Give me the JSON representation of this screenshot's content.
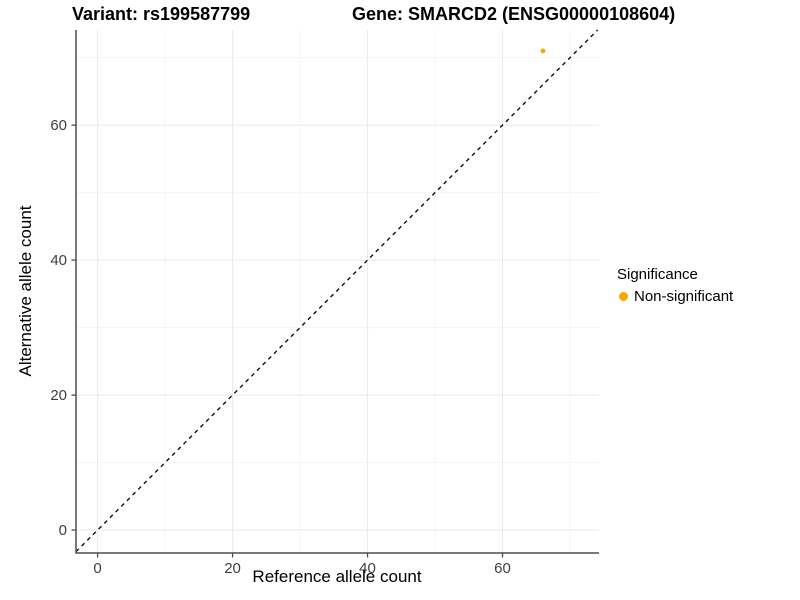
{
  "chart_data": {
    "type": "scatter",
    "title_variant": "Variant: rs199587799",
    "title_gene": "Gene: SMARCD2 (ENSG00000108604)",
    "xlabel": "Reference allele count",
    "ylabel": "Alternative allele count",
    "xlim": [
      -3.2,
      74.3
    ],
    "ylim": [
      -3.4,
      74.1
    ],
    "x_ticks": [
      0,
      20,
      40,
      60
    ],
    "y_ticks": [
      0,
      20,
      40,
      60
    ],
    "minor_gridlines": [
      10,
      30,
      50,
      70
    ],
    "grid": "major+minor on white panel",
    "identity_line": {
      "style": "dashed",
      "color": "#000000",
      "from": -3.2,
      "to": 74.1
    },
    "points": [
      {
        "x": 66,
        "y": 71,
        "series": "Non-significant"
      }
    ],
    "legend": {
      "title": "Significance",
      "position": "right",
      "items": [
        {
          "label": "Non-significant",
          "color": "#FFA500"
        }
      ]
    },
    "colors": {
      "point": "#FFA500",
      "grid_major": "#EBEBEB",
      "grid_minor": "#F5F5F5",
      "axis_line": "#4D4D4D",
      "tick_label": "#404040",
      "title": "#000000"
    }
  }
}
